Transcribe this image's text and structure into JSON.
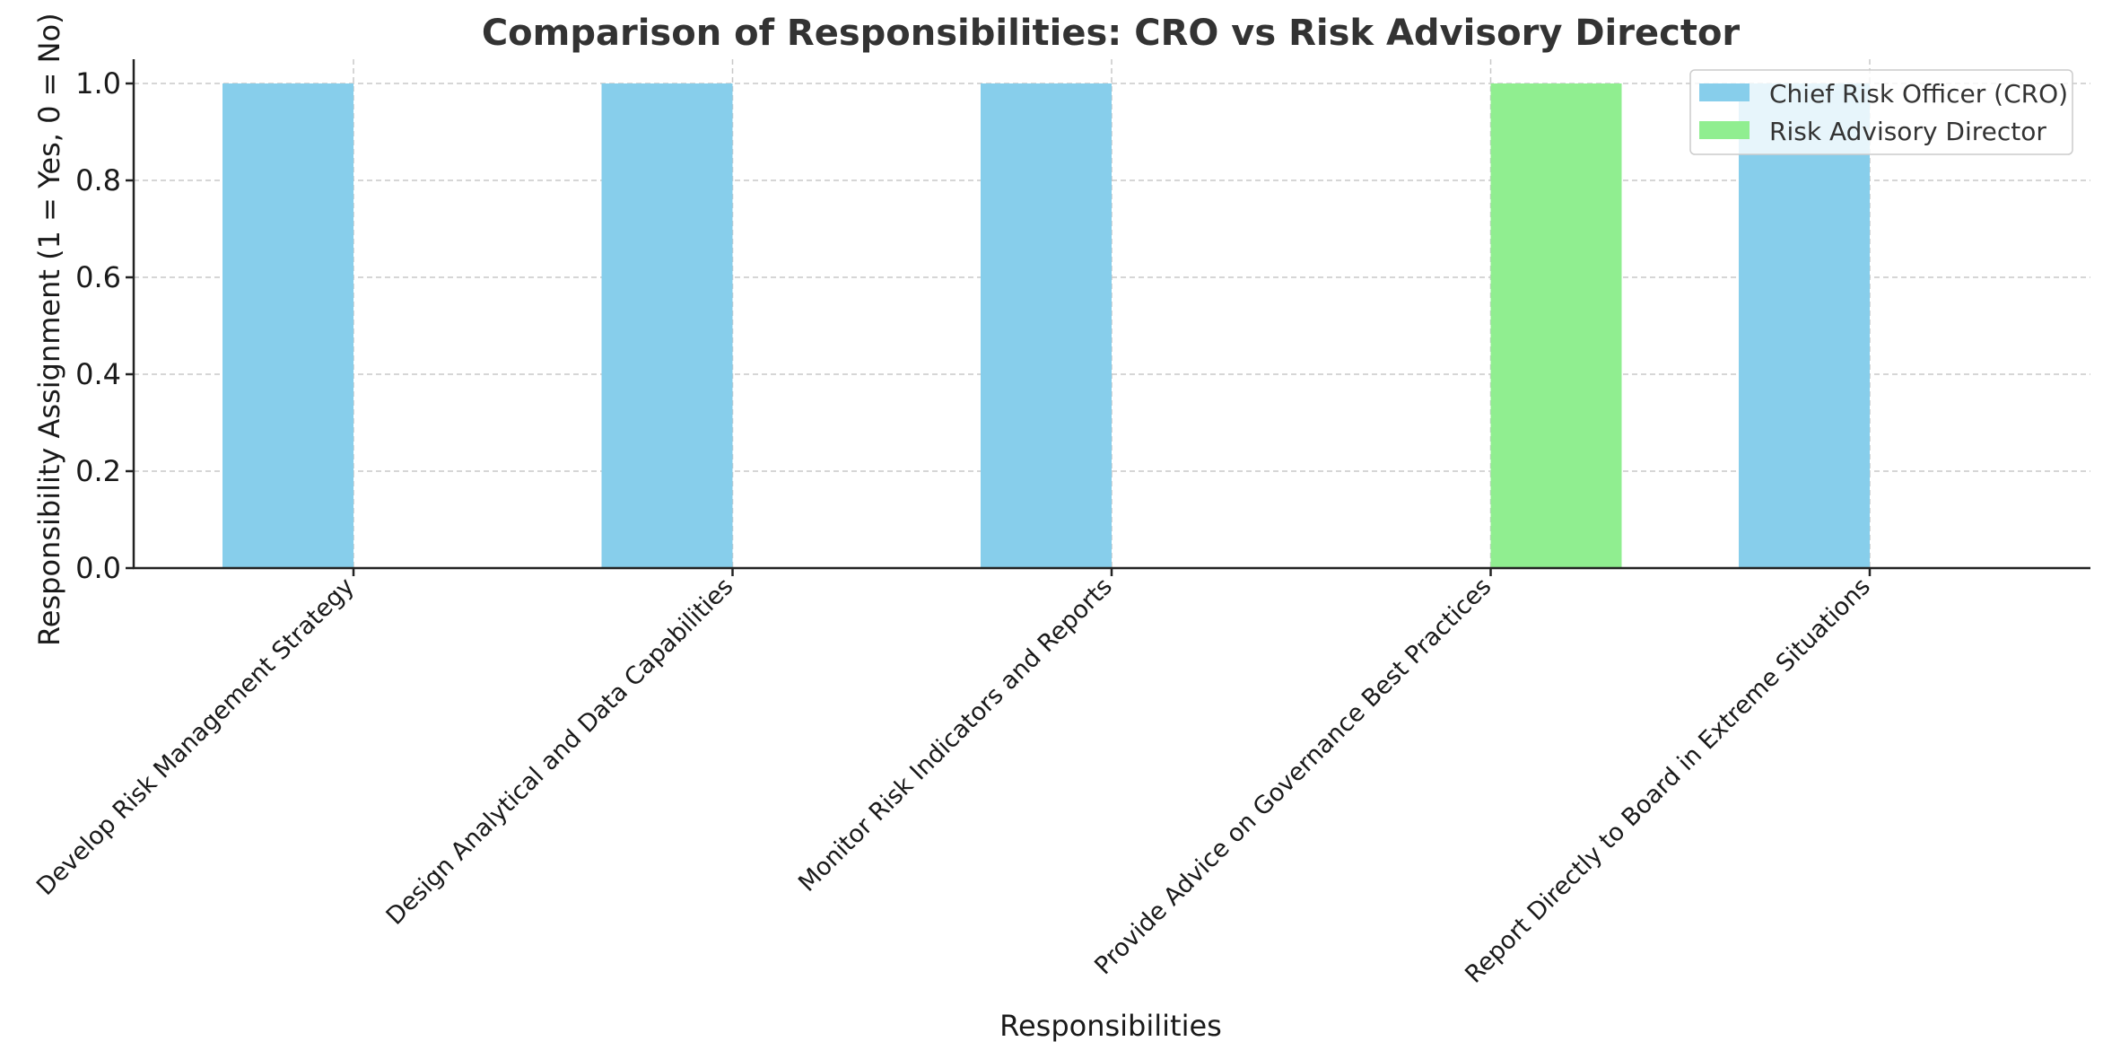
{
  "chart_data": {
    "type": "bar",
    "title": "Comparison of Responsibilities: CRO vs Risk Advisory Director",
    "xlabel": "Responsibilities",
    "ylabel": "Responsibility Assignment (1 = Yes, 0 = No)",
    "categories": [
      "Develop Risk Management Strategy",
      "Design Analytical and Data Capabilities",
      "Monitor Risk Indicators and Reports",
      "Provide Advice on Governance Best Practices",
      "Report Directly to Board in Extreme Situations"
    ],
    "series": [
      {
        "name": "Chief Risk Officer (CRO)",
        "values": [
          1,
          1,
          1,
          0,
          1
        ],
        "color": "#87CEEB"
      },
      {
        "name": "Risk Advisory Director",
        "values": [
          0,
          0,
          0,
          1,
          0
        ],
        "color": "#90EE90"
      }
    ],
    "ylim": [
      0,
      1.05
    ],
    "yticks": [
      "0.0",
      "0.2",
      "0.4",
      "0.6",
      "0.8",
      "1.0"
    ],
    "grid": true,
    "legend_position": "top-right"
  }
}
